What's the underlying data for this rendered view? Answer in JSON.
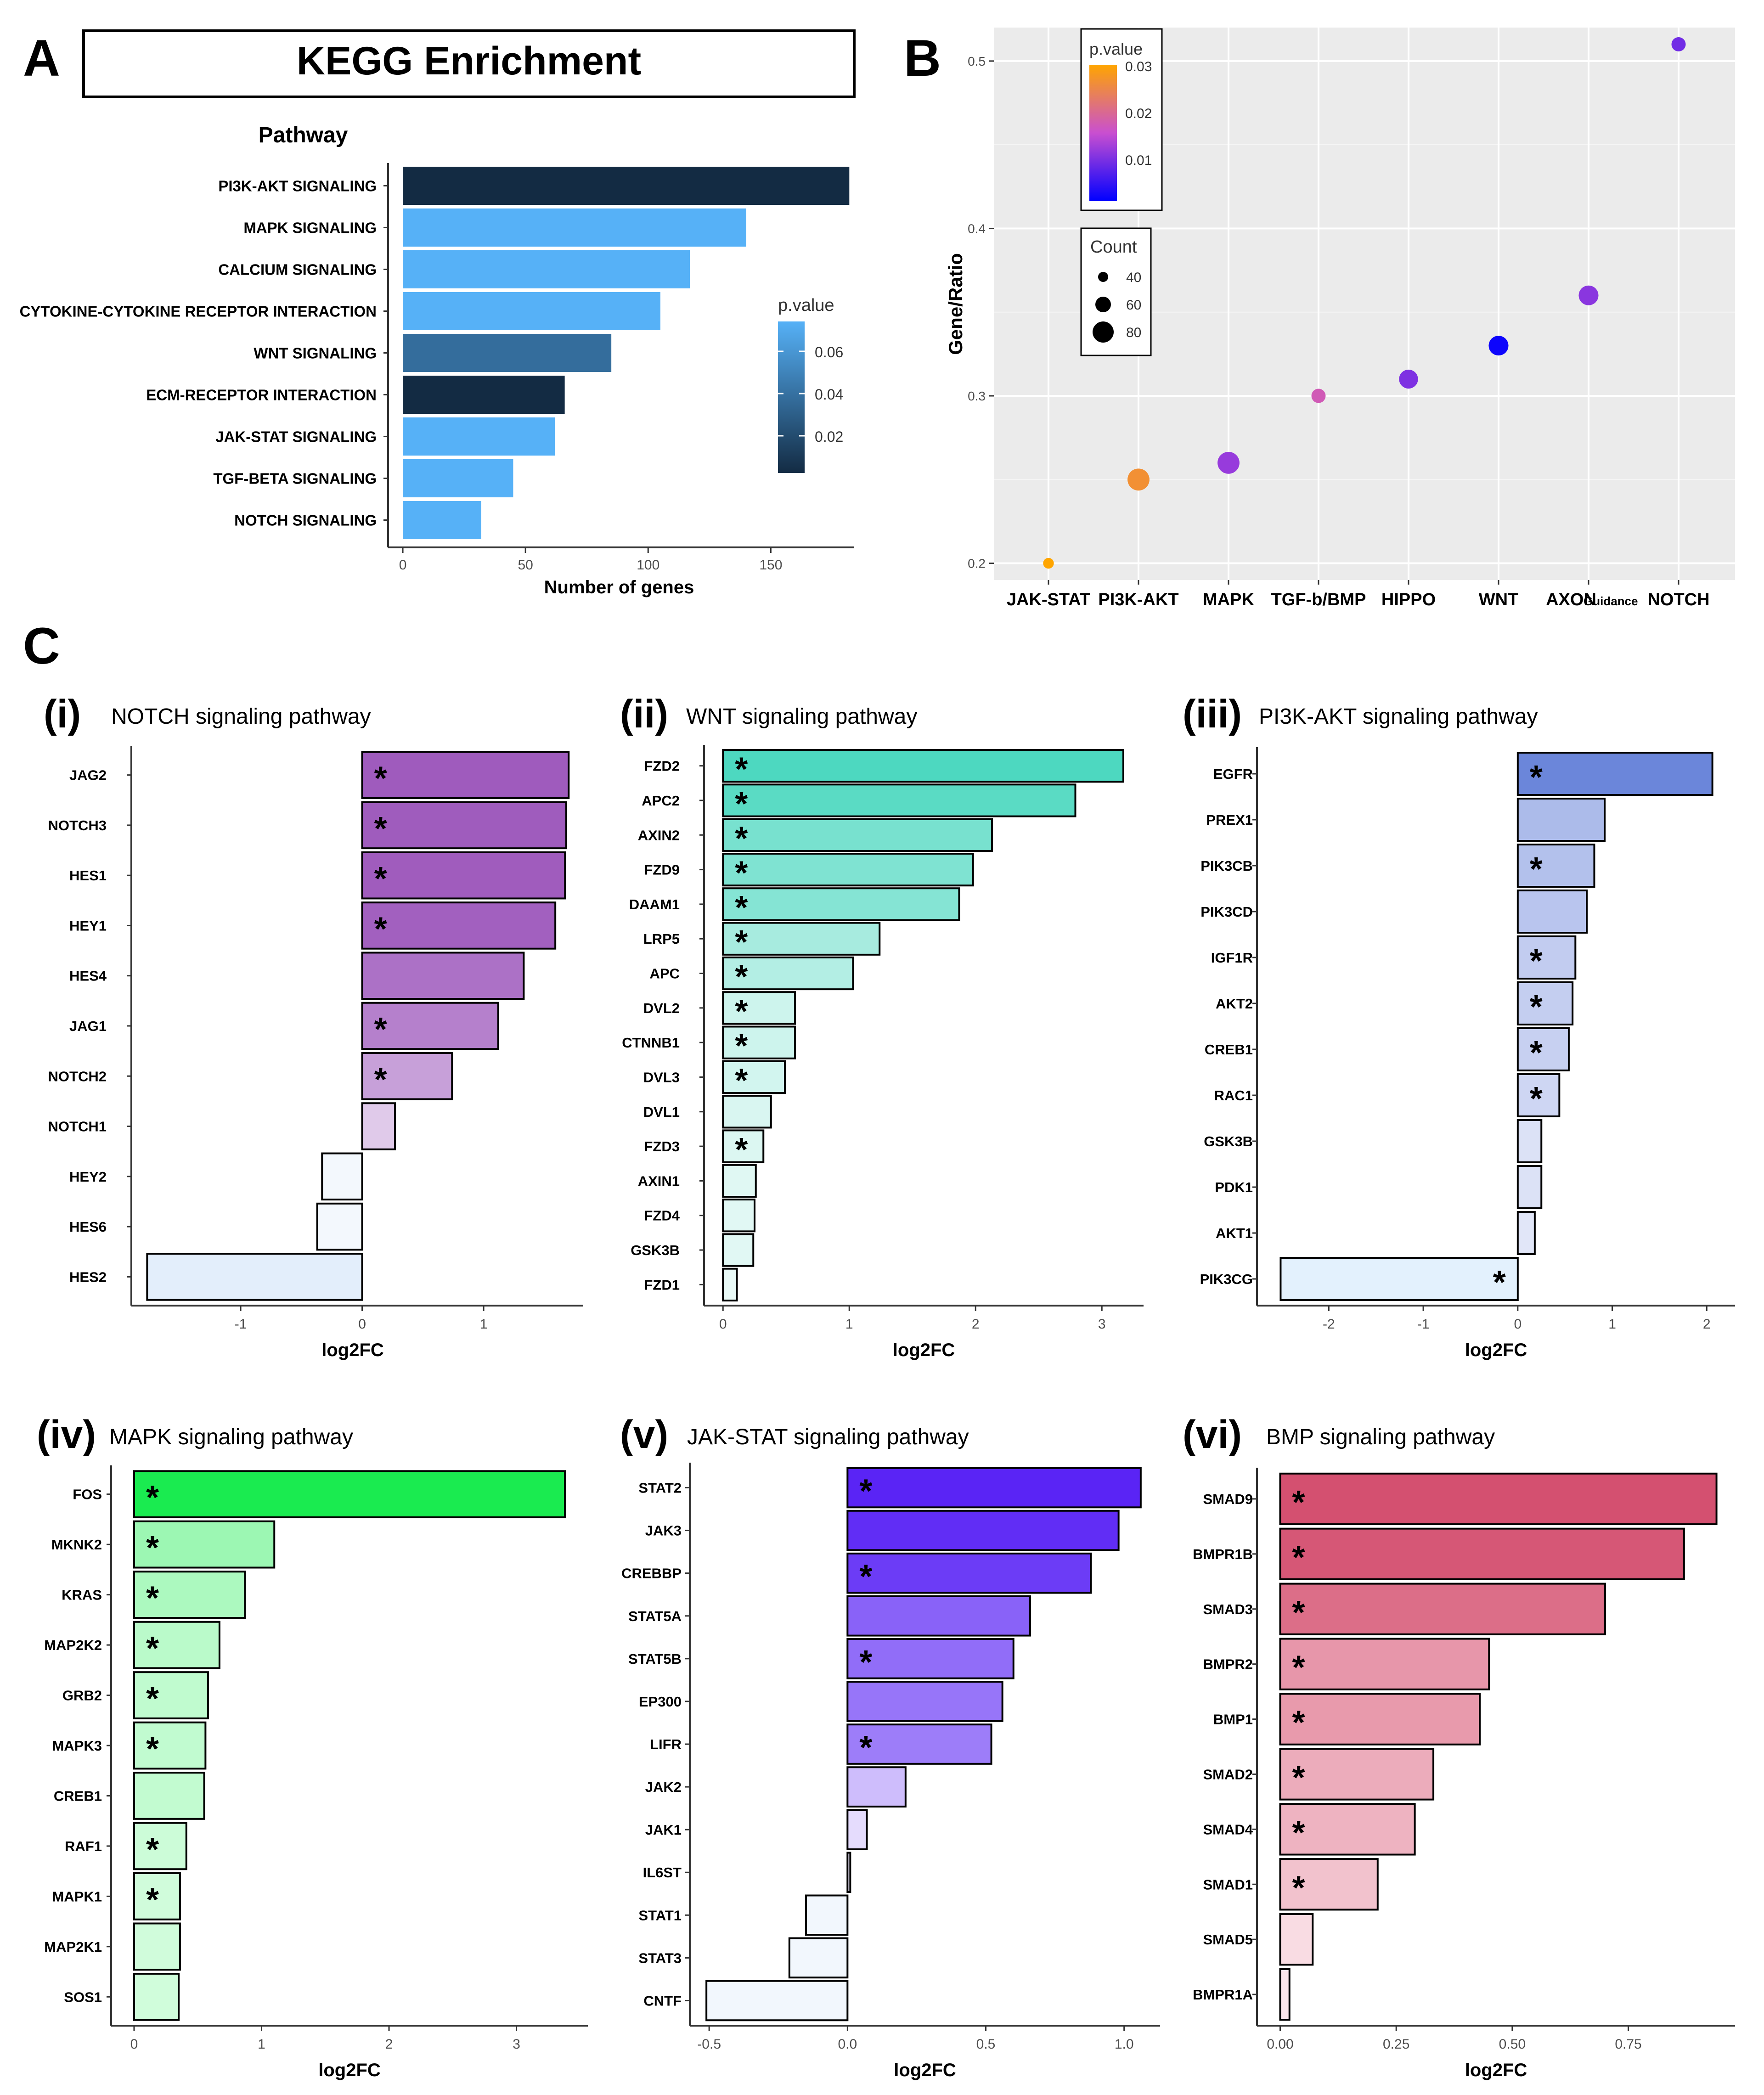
{
  "panel_a": {
    "letter": "A",
    "title": "KEGG Enrichment",
    "ylabel": "Pathway",
    "xlabel": "Number of genes",
    "legend_title": "p.value",
    "legend_ticks": [
      "0.06",
      "0.04",
      "0.02"
    ]
  },
  "panel_b": {
    "letter": "B",
    "ylabel": "Gene/Ratio",
    "legend_pvalue_title": "p.value",
    "legend_pvalue_ticks": [
      "0.03",
      "0.02",
      "0.01"
    ],
    "legend_count_title": "Count",
    "legend_count_values": [
      "40",
      "60",
      "80"
    ],
    "axon_suffix": "Guidance"
  },
  "panel_c": {
    "letter": "C",
    "star": "*",
    "subpanels": [
      {
        "tag": "(i)",
        "title": "NOTCH signaling pathway"
      },
      {
        "tag": "(ii)",
        "title": "WNT signaling pathway"
      },
      {
        "tag": "(iii)",
        "title": "PI3K-AKT signaling pathway"
      },
      {
        "tag": "(iv)",
        "title": "MAPK signaling pathway"
      },
      {
        "tag": "(v)",
        "title": "JAK-STAT signaling pathway"
      },
      {
        "tag": "(vi)",
        "title": "BMP signaling pathway"
      }
    ]
  },
  "colors": {
    "dark_navy": "#132b43",
    "light_blue": "#56b1f7",
    "plot_bg": "#ebebeb"
  },
  "chart_data": [
    {
      "id": "A",
      "type": "bar",
      "orientation": "horizontal",
      "title": "KEGG Enrichment",
      "xlabel": "Number of genes",
      "ylabel": "Pathway",
      "categories": [
        "PI3K-AKT SIGNALING",
        "MAPK SIGNALING",
        "CALCIUM SIGNALING",
        "CYTOKINE-CYTOKINE RECEPTOR INTERACTION",
        "WNT SIGNALING",
        "ECM-RECEPTOR INTERACTION",
        "JAK-STAT SIGNALING",
        "TGF-BETA SIGNALING",
        "NOTCH SIGNALING"
      ],
      "values": [
        182,
        140,
        117,
        105,
        85,
        66,
        62,
        45,
        32
      ],
      "p_values": [
        0.001,
        0.07,
        0.07,
        0.07,
        0.035,
        0.001,
        0.07,
        0.07,
        0.07
      ],
      "xlim": [
        -6,
        184
      ],
      "xticks": [
        0,
        50,
        100,
        150
      ]
    },
    {
      "id": "B",
      "type": "scatter",
      "ylabel": "Gene/Ratio",
      "categories": [
        "JAK-STAT",
        "PI3K-AKT",
        "MAPK",
        "TGF-b/BMP",
        "HIPPO",
        "WNT",
        "AXON",
        "NOTCH"
      ],
      "values": [
        0.2,
        0.25,
        0.26,
        0.3,
        0.31,
        0.33,
        0.36,
        0.51
      ],
      "counts": [
        12,
        70,
        70,
        25,
        50,
        55,
        55,
        25
      ],
      "p_values": [
        0.032,
        0.028,
        0.012,
        0.018,
        0.01,
        0.001,
        0.011,
        0.009
      ],
      "ylim": [
        0.19,
        0.52
      ],
      "yticks": [
        0.2,
        0.3,
        0.4,
        0.5
      ]
    },
    {
      "id": "C-i",
      "type": "bar",
      "orientation": "horizontal",
      "title": "NOTCH signaling pathway",
      "xlabel": "log2FC",
      "categories": [
        "JAG2",
        "NOTCH3",
        "HES1",
        "HEY1",
        "HES4",
        "JAG1",
        "NOTCH2",
        "NOTCH1",
        "HEY2",
        "HES6",
        "HES2"
      ],
      "values": [
        1.7,
        1.68,
        1.67,
        1.59,
        1.33,
        1.12,
        0.74,
        0.27,
        -0.33,
        -0.37,
        -1.77
      ],
      "significant": [
        true,
        true,
        true,
        true,
        false,
        true,
        true,
        false,
        false,
        false,
        false
      ],
      "xlim": [
        -1.9,
        1.82
      ],
      "xticks": [
        -1,
        0,
        1
      ]
    },
    {
      "id": "C-ii",
      "type": "bar",
      "orientation": "horizontal",
      "title": "WNT signaling pathway",
      "xlabel": "log2FC",
      "categories": [
        "FZD2",
        "APC2",
        "AXIN2",
        "FZD9",
        "DAAM1",
        "LRP5",
        "APC",
        "DVL2",
        "CTNNB1",
        "DVL3",
        "DVL1",
        "FZD3",
        "AXIN1",
        "FZD4",
        "GSK3B",
        "FZD1"
      ],
      "values": [
        3.17,
        2.79,
        2.13,
        1.98,
        1.87,
        1.24,
        1.03,
        0.57,
        0.57,
        0.49,
        0.38,
        0.32,
        0.26,
        0.25,
        0.24,
        0.11
      ],
      "significant": [
        true,
        true,
        true,
        true,
        true,
        true,
        true,
        true,
        true,
        true,
        false,
        true,
        false,
        false,
        false,
        false
      ],
      "xlim": [
        -0.15,
        3.33
      ],
      "xticks": [
        0,
        1,
        2,
        3
      ]
    },
    {
      "id": "C-iii",
      "type": "bar",
      "orientation": "horizontal",
      "title": "PI3K-AKT signaling pathway",
      "xlabel": "log2FC",
      "categories": [
        "EGFR",
        "PREX1",
        "PIK3CB",
        "PIK3CD",
        "IGF1R",
        "AKT2",
        "CREB1",
        "RAC1",
        "GSK3B",
        "PDK1",
        "AKT1",
        "PIK3CG"
      ],
      "values": [
        2.06,
        0.92,
        0.81,
        0.73,
        0.61,
        0.58,
        0.54,
        0.44,
        0.25,
        0.25,
        0.18,
        -2.51
      ],
      "significant": [
        true,
        false,
        true,
        false,
        true,
        true,
        true,
        true,
        false,
        false,
        false,
        true
      ],
      "xlim": [
        -2.76,
        2.3
      ],
      "xticks": [
        -2,
        -1,
        0,
        1,
        2
      ]
    },
    {
      "id": "C-iv",
      "type": "bar",
      "orientation": "horizontal",
      "title": "MAPK signaling pathway",
      "xlabel": "log2FC",
      "categories": [
        "FOS",
        "MKNK2",
        "KRAS",
        "MAP2K2",
        "GRB2",
        "MAPK3",
        "CREB1",
        "RAF1",
        "MAPK1",
        "MAP2K1",
        "SOS1"
      ],
      "values": [
        3.38,
        1.1,
        0.87,
        0.67,
        0.58,
        0.56,
        0.55,
        0.41,
        0.36,
        0.36,
        0.35
      ],
      "significant": [
        true,
        true,
        true,
        true,
        true,
        true,
        false,
        true,
        true,
        false,
        false
      ],
      "xlim": [
        -0.18,
        3.56
      ],
      "xticks": [
        0,
        1,
        2,
        3
      ]
    },
    {
      "id": "C-v",
      "type": "bar",
      "orientation": "horizontal",
      "title": "JAK-STAT signaling pathway",
      "xlabel": "log2FC",
      "categories": [
        "STAT2",
        "JAK3",
        "CREBBP",
        "STAT5A",
        "STAT5B",
        "EP300",
        "LIFR",
        "JAK2",
        "JAK1",
        "IL6ST",
        "STAT1",
        "STAT3",
        "CNTF"
      ],
      "values": [
        1.06,
        0.98,
        0.88,
        0.66,
        0.6,
        0.56,
        0.52,
        0.21,
        0.07,
        0.01,
        -0.15,
        -0.21,
        -0.51
      ],
      "significant": [
        true,
        false,
        true,
        false,
        true,
        false,
        true,
        false,
        false,
        false,
        false,
        false,
        false
      ],
      "xlim": [
        -0.57,
        1.13
      ],
      "xticks": [
        -0.5,
        0.0,
        0.5,
        1.0
      ]
    },
    {
      "id": "C-vi",
      "type": "bar",
      "orientation": "horizontal",
      "title": "BMP signaling pathway",
      "xlabel": "log2FC",
      "categories": [
        "SMAD9",
        "BMPR1B",
        "SMAD3",
        "BMPR2",
        "BMP1",
        "SMAD2",
        "SMAD4",
        "SMAD1",
        "SMAD5",
        "BMPR1A"
      ],
      "values": [
        0.94,
        0.87,
        0.7,
        0.45,
        0.43,
        0.33,
        0.29,
        0.21,
        0.07,
        0.02
      ],
      "significant": [
        true,
        true,
        true,
        true,
        true,
        true,
        true,
        true,
        false,
        false
      ],
      "xlim": [
        -0.05,
        0.98
      ],
      "xticks": [
        "0.00",
        "0.25",
        "0.50",
        "0.75"
      ]
    }
  ]
}
